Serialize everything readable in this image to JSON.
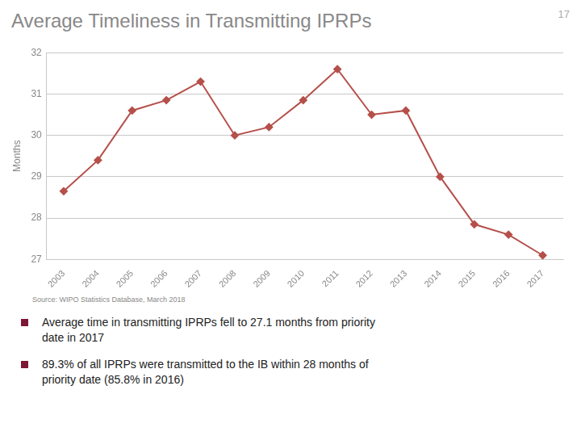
{
  "chart_data": {
    "type": "line",
    "title": "Average Timeliness in Transmitting IPRPs",
    "ylabel": "Months",
    "x": [
      2003,
      2004,
      2005,
      2006,
      2007,
      2008,
      2009,
      2010,
      2011,
      2012,
      2013,
      2014,
      2015,
      2016,
      2017
    ],
    "values": [
      28.65,
      29.4,
      30.6,
      30.85,
      31.3,
      30.0,
      30.2,
      30.85,
      31.6,
      30.5,
      30.6,
      29.0,
      27.85,
      27.6,
      27.1
    ],
    "color": "#b5504a",
    "marker": "diamond",
    "xlim": [
      2002.5,
      2017.6
    ],
    "xticks": [
      2003,
      2004,
      2005,
      2006,
      2007,
      2008,
      2009,
      2010,
      2011,
      2012,
      2013,
      2014,
      2015,
      2016,
      2017
    ],
    "ylim": [
      27,
      32
    ],
    "yticks": [
      27,
      28,
      29,
      30,
      31,
      32
    ],
    "grid": true,
    "annotations": [
      "17",
      "Source: WIPO Statistics  Database, March 2018",
      "Average time in transmitting IPRPs fell to 27.1 months from priority\ndate in 2017",
      "89.3% of all IPRPs were transmitted to the IB within 28 months of\npriority date (85.8% in 2016)"
    ]
  }
}
